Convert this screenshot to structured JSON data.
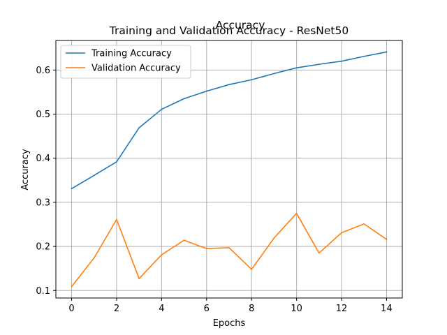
{
  "chart_data": {
    "type": "line",
    "suptitle": "Accuracy",
    "title": "Training and Validation Accuracy - ResNet50",
    "xlabel": "Epochs",
    "ylabel": "Accuracy",
    "x": [
      0,
      1,
      2,
      3,
      4,
      5,
      6,
      7,
      8,
      9,
      10,
      11,
      12,
      13,
      14
    ],
    "xlim": [
      -0.7,
      14.7
    ],
    "ylim": [
      0.083,
      0.667
    ],
    "xticks": [
      0,
      2,
      4,
      6,
      8,
      10,
      12,
      14
    ],
    "yticks": [
      0.1,
      0.2,
      0.3,
      0.4,
      0.5,
      0.6
    ],
    "ytick_labels": [
      "0.1",
      "0.2",
      "0.3",
      "0.4",
      "0.5",
      "0.6"
    ],
    "grid": true,
    "legend_position": "top-left",
    "series": [
      {
        "name": "Training Accuracy",
        "color": "#1f77b4",
        "values": [
          0.331,
          0.361,
          0.392,
          0.469,
          0.511,
          0.535,
          0.552,
          0.567,
          0.578,
          0.592,
          0.605,
          0.613,
          0.62,
          0.631,
          0.641
        ]
      },
      {
        "name": "Validation Accuracy",
        "color": "#ff7f0e",
        "values": [
          0.109,
          0.174,
          0.261,
          0.127,
          0.181,
          0.214,
          0.195,
          0.197,
          0.148,
          0.219,
          0.275,
          0.185,
          0.231,
          0.251,
          0.216
        ]
      }
    ]
  }
}
